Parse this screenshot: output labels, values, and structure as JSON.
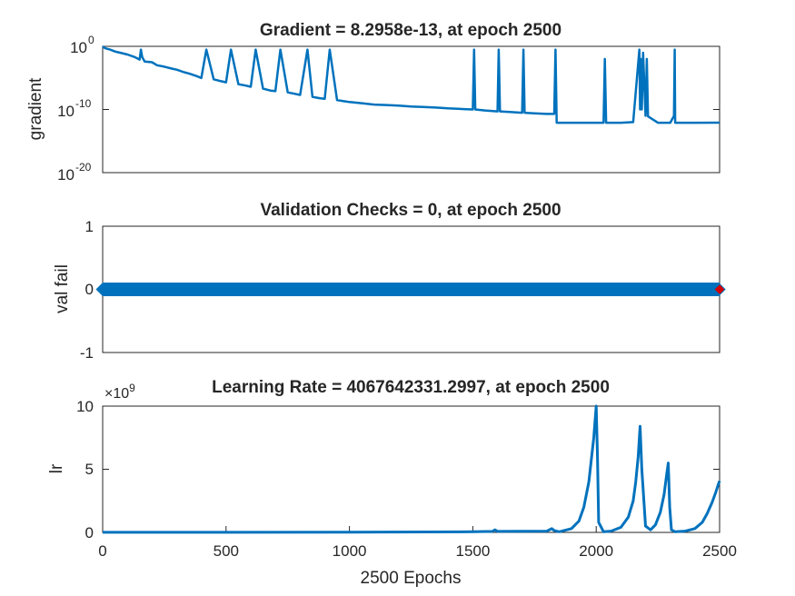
{
  "colors": {
    "line": "#0072bd",
    "marker_best": "#d40000",
    "axis": "#262626",
    "background": "#ffffff"
  },
  "chart_data": [
    {
      "type": "line",
      "id": "gradient",
      "title": "Gradient = 8.2958e-13, at epoch 2500",
      "xlabel": "",
      "ylabel": "gradient",
      "yscale": "log",
      "xlim": [
        0,
        2500
      ],
      "ylim": [
        1e-20,
        1
      ],
      "ytick_labels": [
        "10",
        "10",
        "10"
      ],
      "ytick_exponents": [
        "0",
        "-10",
        "-20"
      ],
      "grid": false,
      "series": [
        {
          "x": [
            0,
            10,
            30,
            50,
            80,
            100,
            130,
            150,
            155,
            160,
            170,
            200,
            220,
            250,
            280,
            300,
            330,
            350,
            380,
            400,
            420,
            450,
            480,
            500,
            520,
            550,
            580,
            600,
            620,
            650,
            680,
            700,
            720,
            750,
            780,
            800,
            830,
            850,
            880,
            900,
            920,
            950,
            980,
            1000,
            1050,
            1100,
            1150,
            1200,
            1250,
            1300,
            1350,
            1400,
            1450,
            1500,
            1505,
            1510,
            1550,
            1600,
            1605,
            1610,
            1650,
            1700,
            1705,
            1710,
            1750,
            1800,
            1830,
            1835,
            1840,
            1900,
            2000,
            2030,
            2035,
            2040,
            2100,
            2150,
            2175,
            2178,
            2180,
            2185,
            2190,
            2200,
            2205,
            2210,
            2250,
            2300,
            2315,
            2318,
            2320,
            2400,
            2500
          ],
          "y": [
            1,
            0.5,
            0.3,
            0.15,
            0.08,
            0.05,
            0.02,
            0.008,
            0.3,
            0.02,
            0.004,
            0.003,
            0.001,
            0.0006,
            0.0003,
            0.0002,
            8e-05,
            5e-05,
            2e-05,
            1e-05,
            0.3,
            6e-06,
            3e-06,
            2e-06,
            0.3,
            1e-06,
            6e-07,
            4e-07,
            0.3,
            2e-07,
            1e-07,
            8e-08,
            0.3,
            5e-08,
            3e-08,
            2e-08,
            0.3,
            1e-08,
            6e-09,
            5e-09,
            0.3,
            3e-09,
            2e-09,
            1.5e-09,
            1e-09,
            6e-10,
            5e-10,
            4e-10,
            3e-10,
            2.5e-10,
            2e-10,
            1.5e-10,
            1.2e-10,
            1e-10,
            0.3,
            1e-10,
            7e-11,
            5e-11,
            0.3,
            5e-11,
            4e-11,
            3e-11,
            0.3,
            3e-11,
            2.5e-11,
            2e-11,
            2e-11,
            0.3,
            8e-13,
            8e-13,
            8e-13,
            8e-13,
            0.01,
            8e-13,
            8e-13,
            1e-12,
            0.3,
            1e-10,
            0.01,
            1e-10,
            0.1,
            1e-11,
            0.01,
            8e-12,
            8e-13,
            8e-13,
            1e-11,
            0.3,
            8e-13,
            8e-13,
            8.2958e-13
          ]
        }
      ]
    },
    {
      "type": "line",
      "id": "validation",
      "title": "Validation Checks = 0, at epoch 2500",
      "xlabel": "",
      "ylabel": "val fail",
      "xlim": [
        0,
        2500
      ],
      "ylim": [
        -1,
        1
      ],
      "yticks": [
        -1,
        0,
        1
      ],
      "ytick_labels": [
        "-1",
        "0",
        "1"
      ],
      "grid": false,
      "series": [
        {
          "x": [
            0,
            2500
          ],
          "y": [
            0,
            0
          ],
          "markers": "diamond"
        }
      ],
      "best_point": {
        "x": 2500,
        "y": 0
      }
    },
    {
      "type": "line",
      "id": "learning-rate",
      "title": "Learning Rate = 4067642331.2997, at epoch 2500",
      "xlabel": "2500 Epochs",
      "ylabel": "lr",
      "xlim": [
        0,
        2500
      ],
      "ylim": [
        0,
        10
      ],
      "yticks": [
        0,
        5,
        10
      ],
      "ytick_labels": [
        "0",
        "5",
        "10"
      ],
      "exponent_label": "×10",
      "exponent_power": "9",
      "xticks": [
        0,
        500,
        1000,
        1500,
        2000,
        2500
      ],
      "xtick_labels": [
        "0",
        "500",
        "1000",
        "1500",
        "2000",
        "2500"
      ],
      "grid": false,
      "series": [
        {
          "x": [
            0,
            500,
            1000,
            1500,
            1580,
            1590,
            1600,
            1800,
            1820,
            1830,
            1850,
            1900,
            1930,
            1950,
            1970,
            1990,
            2000,
            2005,
            2010,
            2030,
            2060,
            2100,
            2130,
            2150,
            2160,
            2170,
            2178,
            2185,
            2200,
            2220,
            2240,
            2260,
            2275,
            2285,
            2292,
            2298,
            2305,
            2320,
            2360,
            2400,
            2430,
            2450,
            2470,
            2485,
            2495,
            2500
          ],
          "y": [
            0.01,
            0.01,
            0.02,
            0.05,
            0.08,
            0.2,
            0.08,
            0.1,
            0.3,
            0.15,
            0.05,
            0.3,
            0.9,
            2,
            4,
            7.5,
            10,
            6,
            0.8,
            0.05,
            0.1,
            0.4,
            1.2,
            2.5,
            4,
            6,
            8.4,
            5,
            0.5,
            0.2,
            0.6,
            1.6,
            3,
            4.5,
            5.5,
            2,
            0.2,
            0.05,
            0.1,
            0.3,
            0.8,
            1.5,
            2.4,
            3.2,
            3.8,
            4.07
          ]
        }
      ]
    }
  ]
}
